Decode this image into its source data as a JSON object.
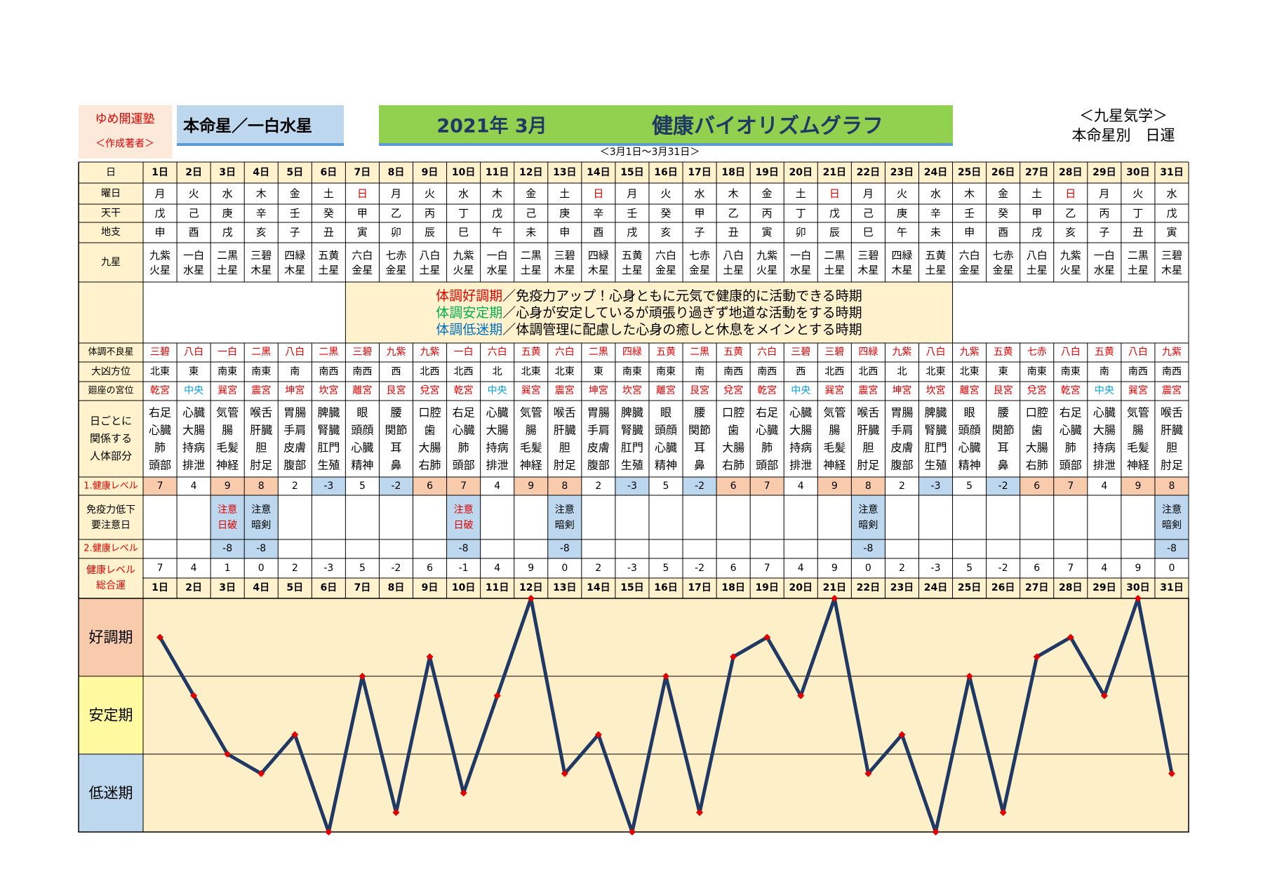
{
  "header": {
    "author": "ゆめ開運塾",
    "author_note": "＜作成著者＞",
    "star": "本命星／一白水星",
    "month": "2021年 3月",
    "title": "健康バイオリズムグラフ",
    "school": "＜九星気学＞",
    "subtitle": "本命星別　日運",
    "period": "＜3月1日～3月31日＞"
  },
  "row_labels": {
    "day": "日",
    "weekday": "曜日",
    "stem": "天干",
    "branch": "地支",
    "star": "九星",
    "bad_star": "体調不良星",
    "direction": "大凶方位",
    "palace": "廻座の宮位",
    "body": [
      "日ごとに",
      "関係する",
      "人体部分"
    ],
    "level1": "1.健康レベル",
    "immune": [
      "免疫力低下",
      "要注意日"
    ],
    "level2": "2.健康レベル",
    "total": [
      "健康レベル",
      "総合運"
    ]
  },
  "legend": [
    {
      "term": "体調好調期",
      "text": "／免疫力アップ！心身ともに元気で健康的に活動できる時期",
      "color": "#e00000"
    },
    {
      "term": "体調安定期",
      "text": "／心身が安定しているが頑張り過ぎず地道な活動をする時期",
      "color": "#00b050"
    },
    {
      "term": "体調低迷期",
      "text": "／体調管理に配慮した心身の癒しと休息をメインとする時期",
      "color": "#0070c0"
    }
  ],
  "days": [
    "1日",
    "2日",
    "3日",
    "4日",
    "5日",
    "6日",
    "7日",
    "8日",
    "9日",
    "10日",
    "11日",
    "12日",
    "13日",
    "14日",
    "15日",
    "16日",
    "17日",
    "18日",
    "19日",
    "20日",
    "21日",
    "22日",
    "23日",
    "24日",
    "25日",
    "26日",
    "27日",
    "28日",
    "29日",
    "30日",
    "31日"
  ],
  "weekday": [
    "月",
    "火",
    "水",
    "木",
    "金",
    "土",
    "日",
    "月",
    "火",
    "水",
    "木",
    "金",
    "土",
    "日",
    "月",
    "火",
    "水",
    "木",
    "金",
    "土",
    "日",
    "月",
    "火",
    "水",
    "木",
    "金",
    "土",
    "日",
    "月",
    "火",
    "水"
  ],
  "weekday_color": [
    "#000",
    "#000",
    "#000",
    "#000",
    "#000",
    "#000",
    "#e00000",
    "#000",
    "#000",
    "#000",
    "#000",
    "#000",
    "#000",
    "#e00000",
    "#000",
    "#000",
    "#000",
    "#000",
    "#000",
    "#000",
    "#e00000",
    "#000",
    "#000",
    "#000",
    "#000",
    "#000",
    "#000",
    "#e00000",
    "#000",
    "#000",
    "#000"
  ],
  "stem": [
    "戊",
    "己",
    "庚",
    "辛",
    "壬",
    "癸",
    "甲",
    "乙",
    "丙",
    "丁",
    "戊",
    "己",
    "庚",
    "辛",
    "壬",
    "癸",
    "甲",
    "乙",
    "丙",
    "丁",
    "戊",
    "己",
    "庚",
    "辛",
    "壬",
    "癸",
    "甲",
    "乙",
    "丙",
    "丁",
    "戊"
  ],
  "branch": [
    "申",
    "酉",
    "戌",
    "亥",
    "子",
    "丑",
    "寅",
    "卯",
    "辰",
    "巳",
    "午",
    "未",
    "申",
    "酉",
    "戌",
    "亥",
    "子",
    "丑",
    "寅",
    "卯",
    "辰",
    "巳",
    "午",
    "未",
    "申",
    "酉",
    "戌",
    "亥",
    "子",
    "丑",
    "寅"
  ],
  "star": [
    [
      "九紫",
      "火星"
    ],
    [
      "一白",
      "水星"
    ],
    [
      "二黒",
      "土星"
    ],
    [
      "三碧",
      "木星"
    ],
    [
      "四緑",
      "木星"
    ],
    [
      "五黄",
      "土星"
    ],
    [
      "六白",
      "金星"
    ],
    [
      "七赤",
      "金星"
    ],
    [
      "八白",
      "土星"
    ],
    [
      "九紫",
      "火星"
    ],
    [
      "一白",
      "水星"
    ],
    [
      "二黒",
      "土星"
    ],
    [
      "三碧",
      "木星"
    ],
    [
      "四緑",
      "木星"
    ],
    [
      "五黄",
      "土星"
    ],
    [
      "六白",
      "金星"
    ],
    [
      "七赤",
      "金星"
    ],
    [
      "八白",
      "土星"
    ],
    [
      "九紫",
      "火星"
    ],
    [
      "一白",
      "水星"
    ],
    [
      "二黒",
      "土星"
    ],
    [
      "三碧",
      "木星"
    ],
    [
      "四緑",
      "木星"
    ],
    [
      "五黄",
      "土星"
    ],
    [
      "六白",
      "金星"
    ],
    [
      "七赤",
      "金星"
    ],
    [
      "八白",
      "土星"
    ],
    [
      "九紫",
      "火星"
    ],
    [
      "一白",
      "水星"
    ],
    [
      "二黒",
      "土星"
    ],
    [
      "三碧",
      "木星"
    ]
  ],
  "bad_star": [
    "三碧",
    "八白",
    "一白",
    "二黒",
    "八白",
    "二黒",
    "三碧",
    "九紫",
    "九紫",
    "一白",
    "六白",
    "五黄",
    "六白",
    "二黒",
    "四緑",
    "五黄",
    "二黒",
    "五黄",
    "六白",
    "三碧",
    "三碧",
    "四緑",
    "九紫",
    "八白",
    "九紫",
    "五黄",
    "七赤",
    "八白",
    "五黄",
    "八白",
    "九紫"
  ],
  "bad_star_color": "#e00000",
  "direction": [
    "北東",
    "東",
    "南東",
    "南東",
    "南",
    "南西",
    "南西",
    "西",
    "北西",
    "北西",
    "北",
    "北東",
    "北東",
    "東",
    "南東",
    "南東",
    "南",
    "南西",
    "南西",
    "西",
    "北西",
    "北西",
    "北",
    "北東",
    "北東",
    "東",
    "南東",
    "南東",
    "南",
    "南西",
    "南西"
  ],
  "palace": [
    "乾宮",
    "中央",
    "巽宮",
    "震宮",
    "坤宮",
    "坎宮",
    "離宮",
    "艮宮",
    "兌宮",
    "乾宮",
    "中央",
    "巽宮",
    "震宮",
    "坤宮",
    "坎宮",
    "離宮",
    "艮宮",
    "兌宮",
    "乾宮",
    "中央",
    "巽宮",
    "震宮",
    "坤宮",
    "坎宮",
    "離宮",
    "艮宮",
    "兌宮",
    "乾宮",
    "中央",
    "巽宮",
    "震宮"
  ],
  "palace_color": [
    "#e00000",
    "#00a0e0",
    "#e00000",
    "#e00000",
    "#e00000",
    "#e00000",
    "#e00000",
    "#e00000",
    "#e00000",
    "#e00000",
    "#00a0e0",
    "#e00000",
    "#e00000",
    "#e00000",
    "#e00000",
    "#e00000",
    "#e00000",
    "#e00000",
    "#e00000",
    "#00a0e0",
    "#e00000",
    "#e00000",
    "#e00000",
    "#e00000",
    "#e00000",
    "#e00000",
    "#e00000",
    "#e00000",
    "#00a0e0",
    "#e00000",
    "#e00000"
  ],
  "body": [
    [
      "右足",
      "心臓",
      "肺",
      "頭部"
    ],
    [
      "心臓",
      "大腸",
      "持病",
      "排泄"
    ],
    [
      "気管",
      "腸",
      "毛髪",
      "神経"
    ],
    [
      "喉舌",
      "肝臓",
      "胆",
      "肘足"
    ],
    [
      "胃腸",
      "手肩",
      "皮膚",
      "腹部"
    ],
    [
      "脾臓",
      "腎臓",
      "肛門",
      "生殖"
    ],
    [
      "眼",
      "頭顔",
      "心臓",
      "精神"
    ],
    [
      "腰",
      "関節",
      "耳",
      "鼻"
    ],
    [
      "口腔",
      "歯",
      "大腸",
      "右肺"
    ],
    [
      "右足",
      "心臓",
      "肺",
      "頭部"
    ],
    [
      "心臓",
      "大腸",
      "持病",
      "排泄"
    ],
    [
      "気管",
      "腸",
      "毛髪",
      "神経"
    ],
    [
      "喉舌",
      "肝臓",
      "胆",
      "肘足"
    ],
    [
      "胃腸",
      "手肩",
      "皮膚",
      "腹部"
    ],
    [
      "脾臓",
      "腎臓",
      "肛門",
      "生殖"
    ],
    [
      "眼",
      "頭顔",
      "心臓",
      "精神"
    ],
    [
      "腰",
      "関節",
      "耳",
      "鼻"
    ],
    [
      "口腔",
      "歯",
      "大腸",
      "右肺"
    ],
    [
      "右足",
      "心臓",
      "肺",
      "頭部"
    ],
    [
      "心臓",
      "大腸",
      "持病",
      "排泄"
    ],
    [
      "気管",
      "腸",
      "毛髪",
      "神経"
    ],
    [
      "喉舌",
      "肝臓",
      "胆",
      "肘足"
    ],
    [
      "胃腸",
      "手肩",
      "皮膚",
      "腹部"
    ],
    [
      "脾臓",
      "腎臓",
      "肛門",
      "生殖"
    ],
    [
      "眼",
      "頭顔",
      "心臓",
      "精神"
    ],
    [
      "腰",
      "関節",
      "耳",
      "鼻"
    ],
    [
      "口腔",
      "歯",
      "大腸",
      "右肺"
    ],
    [
      "右足",
      "心臓",
      "肺",
      "頭部"
    ],
    [
      "心臓",
      "大腸",
      "持病",
      "排泄"
    ],
    [
      "気管",
      "腸",
      "毛髪",
      "神経"
    ],
    [
      "喉舌",
      "肝臓",
      "胆",
      "肘足"
    ]
  ],
  "level1": [
    7,
    4,
    9,
    8,
    2,
    -3,
    5,
    -2,
    6,
    7,
    4,
    9,
    8,
    2,
    -3,
    5,
    -2,
    6,
    7,
    4,
    9,
    8,
    2,
    -3,
    5,
    -2,
    6,
    7,
    4,
    9,
    8
  ],
  "level1_fill": [
    "#f8cbad",
    null,
    "#f8cbad",
    "#f8cbad",
    null,
    "#bdd7ee",
    null,
    "#bdd7ee",
    "#f8cbad",
    "#f8cbad",
    null,
    "#f8cbad",
    "#f8cbad",
    null,
    "#bdd7ee",
    null,
    "#bdd7ee",
    "#f8cbad",
    "#f8cbad",
    null,
    "#f8cbad",
    "#f8cbad",
    null,
    "#bdd7ee",
    null,
    "#bdd7ee",
    "#f8cbad",
    "#f8cbad",
    null,
    "#f8cbad",
    "#f8cbad"
  ],
  "immune": [
    null,
    null,
    {
      "lines": [
        "注意",
        "日破"
      ],
      "color": "#e00000"
    },
    {
      "lines": [
        "注意",
        "暗剣"
      ],
      "color": "#000"
    },
    null,
    null,
    null,
    null,
    null,
    {
      "lines": [
        "注意",
        "日破"
      ],
      "color": "#e00000"
    },
    null,
    null,
    {
      "lines": [
        "注意",
        "暗剣"
      ],
      "color": "#000"
    },
    null,
    null,
    null,
    null,
    null,
    null,
    null,
    null,
    {
      "lines": [
        "注意",
        "暗剣"
      ],
      "color": "#000"
    },
    null,
    null,
    null,
    null,
    null,
    null,
    null,
    null,
    {
      "lines": [
        "注意",
        "暗剣"
      ],
      "color": "#000"
    }
  ],
  "level2": [
    null,
    null,
    -8,
    -8,
    null,
    null,
    null,
    null,
    null,
    -8,
    null,
    null,
    -8,
    null,
    null,
    null,
    null,
    null,
    null,
    null,
    null,
    -8,
    null,
    null,
    null,
    null,
    null,
    null,
    null,
    null,
    -8
  ],
  "note_fill": "#bdd7ee",
  "total": [
    7,
    4,
    1,
    0,
    2,
    -3,
    5,
    -2,
    6,
    -1,
    4,
    9,
    0,
    2,
    -3,
    5,
    -2,
    6,
    7,
    4,
    9,
    0,
    2,
    -3,
    5,
    -2,
    6,
    7,
    4,
    9,
    0
  ],
  "graph": {
    "bands": [
      "好調期",
      "安定期",
      "低迷期"
    ],
    "band_colors": [
      "#f8cbad",
      "#fffaa0",
      "#bdd7ee"
    ],
    "ylim": [
      -3,
      9
    ],
    "line_color": "#1f3864",
    "marker_color": "#e00000"
  }
}
